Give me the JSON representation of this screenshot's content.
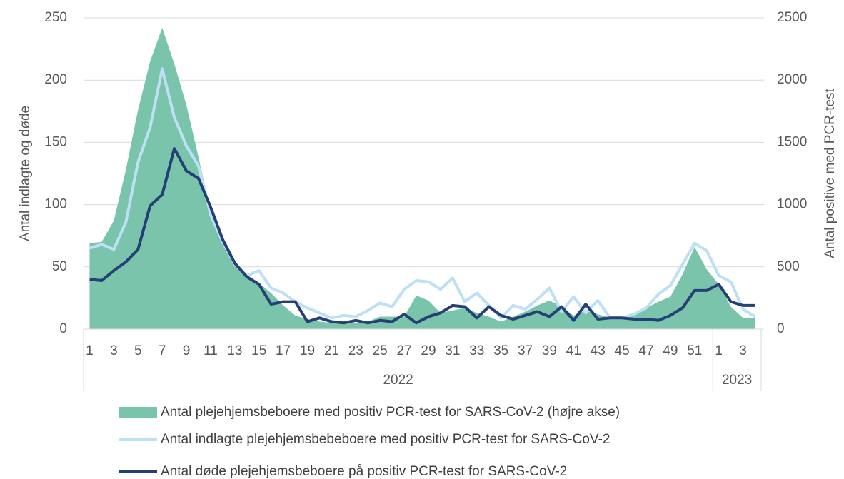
{
  "chart_data": {
    "type": "line",
    "y_label": "Antal indlagte og døde",
    "y2_label": "Antal positive med PCR-test",
    "category_groups": [
      {
        "label": "2022",
        "categories": [
          "1",
          null,
          "3",
          null,
          "5",
          null,
          "7",
          null,
          "9",
          null,
          "11",
          null,
          "13",
          null,
          "15",
          null,
          "17",
          null,
          "19",
          null,
          "21",
          null,
          "23",
          null,
          "25",
          null,
          "27",
          null,
          "29",
          null,
          "31",
          null,
          "33",
          null,
          "35",
          null,
          "37",
          null,
          "39",
          null,
          "41",
          null,
          "43",
          null,
          "45",
          null,
          "47",
          null,
          "49",
          null,
          "51",
          null
        ]
      },
      {
        "label": "2023",
        "categories": [
          "1",
          null,
          "3",
          null
        ]
      }
    ],
    "series": [
      {
        "name": "Antal plejehjemsbeboere med positiv PCR-test for SARS-CoV-2 (højre akse)",
        "type": "area",
        "axis": "y2",
        "color": "#7bc4ac",
        "values": [
          690,
          700,
          870,
          1280,
          1760,
          2150,
          2420,
          2130,
          1800,
          1380,
          950,
          700,
          520,
          420,
          370,
          290,
          190,
          110,
          80,
          60,
          50,
          50,
          50,
          60,
          100,
          100,
          100,
          270,
          230,
          130,
          150,
          170,
          130,
          100,
          60,
          100,
          140,
          190,
          230,
          180,
          110,
          150,
          120,
          90,
          90,
          110,
          170,
          220,
          260,
          440,
          660,
          480,
          360,
          180,
          90,
          90
        ]
      },
      {
        "name": "Antal indlagte plejehjemsbebeboere med positiv PCR-test for SARS-CoV-2",
        "type": "line",
        "color": "#bde0f5",
        "values": [
          65,
          68,
          64,
          86,
          134,
          162,
          209,
          170,
          147,
          131,
          92,
          70,
          52,
          43,
          47,
          33,
          29,
          22,
          17,
          13,
          9,
          11,
          10,
          15,
          21,
          18,
          32,
          39,
          38,
          32,
          41,
          22,
          29,
          19,
          9,
          19,
          16,
          24,
          33,
          14,
          26,
          13,
          23,
          9,
          9,
          12,
          17,
          28,
          35,
          52,
          69,
          63,
          43,
          38,
          16,
          10
        ]
      },
      {
        "name": "Antal døde plejehjemsbeboere på positiv PCR-test for SARS-CoV-2",
        "type": "line",
        "color": "#253f77",
        "values": [
          40,
          39,
          47,
          54,
          64,
          99,
          108,
          145,
          127,
          121,
          98,
          72,
          53,
          42,
          36,
          20,
          22,
          22,
          6,
          9,
          6,
          5,
          7,
          5,
          7,
          6,
          12,
          5,
          10,
          13,
          19,
          18,
          9,
          18,
          11,
          8,
          11,
          14,
          10,
          18,
          7,
          20,
          8,
          9,
          9,
          8,
          8,
          7,
          11,
          17,
          31,
          31,
          36,
          22,
          19,
          19
        ]
      }
    ],
    "ylim": [
      0,
      250
    ],
    "yticks": [
      0,
      50,
      100,
      150,
      200,
      250
    ],
    "y2lim": [
      0,
      2500
    ],
    "y2ticks": [
      0,
      500,
      1000,
      1500,
      2000,
      2500
    ],
    "grid": true
  }
}
